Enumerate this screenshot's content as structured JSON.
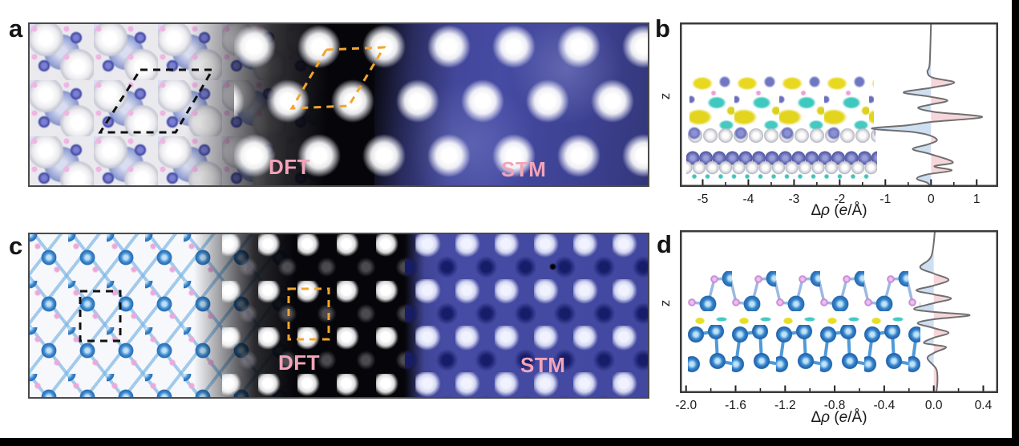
{
  "figure": {
    "panels": {
      "a": {
        "letter": "a",
        "dft_label": "DFT",
        "stm_label": "STM"
      },
      "b": {
        "letter": "b",
        "ylabel": "z",
        "xlabel": {
          "delta": "Δ",
          "rho": "ρ",
          "open": " (",
          "e": "e",
          "close": "/Å)"
        }
      },
      "c": {
        "letter": "c",
        "dft_label": "DFT",
        "stm_label": "STM"
      },
      "d": {
        "letter": "d",
        "ylabel": "z",
        "xlabel": {
          "delta": "Δ",
          "rho": "ρ",
          "open": " (",
          "e": "e",
          "close": "/Å)"
        }
      }
    },
    "colors": {
      "tech_label_pink": "#f2a4b8",
      "unit_cell_black": "#111111",
      "unit_cell_orange": "#f2a52d",
      "curve_gray": "#6f6f6f",
      "fill_positive": "#f7d6db",
      "fill_negative": "#cfdff2",
      "stm_blue": "#464ba3",
      "plot_border": "#3a3a3a"
    }
  },
  "chart_data": [
    {
      "panel": "b",
      "type": "area",
      "title": "",
      "xlabel": "Δρ (e/Å)",
      "ylabel": "z",
      "xlim": [
        -5.5,
        1.47
      ],
      "tick_values": [
        -5,
        -4,
        -3,
        -2,
        -1,
        0,
        1
      ],
      "tick_labels": [
        "-5",
        "-4",
        "-3",
        "-2",
        "-1",
        "0",
        "1"
      ],
      "minor_step": 0.5,
      "grid": false,
      "legend": false,
      "profile_note": "charge density difference vs height z (top to bottom), z as fraction of axis",
      "profile": [
        [
          0,
          0
        ],
        [
          0.25,
          -0.03
        ],
        [
          0.3,
          -0.08
        ],
        [
          0.335,
          0.03
        ],
        [
          0.365,
          0.51
        ],
        [
          0.395,
          0.05
        ],
        [
          0.425,
          -0.6
        ],
        [
          0.45,
          -0.05
        ],
        [
          0.475,
          0.36
        ],
        [
          0.5,
          -0.02
        ],
        [
          0.52,
          -0.28
        ],
        [
          0.545,
          0.1
        ],
        [
          0.575,
          1.12
        ],
        [
          0.605,
          0.0
        ],
        [
          0.625,
          -0.5
        ],
        [
          0.645,
          -1.3
        ],
        [
          0.665,
          -0.45
        ],
        [
          0.685,
          -0.05
        ],
        [
          0.715,
          0.13
        ],
        [
          0.74,
          -0.05
        ],
        [
          0.77,
          -0.4
        ],
        [
          0.8,
          -0.02
        ],
        [
          0.85,
          0.48
        ],
        [
          0.875,
          0.07
        ],
        [
          0.9,
          0.45
        ],
        [
          0.925,
          -0.1
        ],
        [
          0.95,
          -0.31
        ],
        [
          0.975,
          -0.08
        ],
        [
          1,
          -0.02
        ]
      ]
    },
    {
      "panel": "d",
      "type": "area",
      "title": "",
      "xlabel": "Δρ (e/Å)",
      "ylabel": "z",
      "xlim": [
        -2.05,
        0.52
      ],
      "tick_values": [
        -2.0,
        -1.6,
        -1.2,
        -0.8,
        -0.4,
        0.0,
        0.4
      ],
      "tick_labels": [
        "-2.0",
        "-1.6",
        "-1.2",
        "-0.8",
        "-0.4",
        "0.0",
        "0.4"
      ],
      "minor_step": 0.2,
      "grid": false,
      "legend": false,
      "profile_note": "charge density difference vs height z (top to bottom), z as fraction of axis",
      "profile": [
        [
          0,
          0.01
        ],
        [
          0.16,
          -0.02
        ],
        [
          0.227,
          -0.11
        ],
        [
          0.266,
          0
        ],
        [
          0.305,
          0.12
        ],
        [
          0.34,
          0
        ],
        [
          0.369,
          -0.14
        ],
        [
          0.394,
          0
        ],
        [
          0.419,
          0.14
        ],
        [
          0.448,
          0
        ],
        [
          0.483,
          -0.16
        ],
        [
          0.502,
          0
        ],
        [
          0.522,
          0.29
        ],
        [
          0.547,
          0
        ],
        [
          0.571,
          -0.13
        ],
        [
          0.601,
          0
        ],
        [
          0.63,
          0.12
        ],
        [
          0.66,
          0
        ],
        [
          0.69,
          -0.08
        ],
        [
          0.704,
          0
        ],
        [
          0.719,
          0.1
        ],
        [
          0.754,
          0
        ],
        [
          0.788,
          -0.05
        ],
        [
          0.852,
          0.02
        ],
        [
          0.926,
          0.03
        ],
        [
          1,
          0.02
        ]
      ]
    }
  ]
}
